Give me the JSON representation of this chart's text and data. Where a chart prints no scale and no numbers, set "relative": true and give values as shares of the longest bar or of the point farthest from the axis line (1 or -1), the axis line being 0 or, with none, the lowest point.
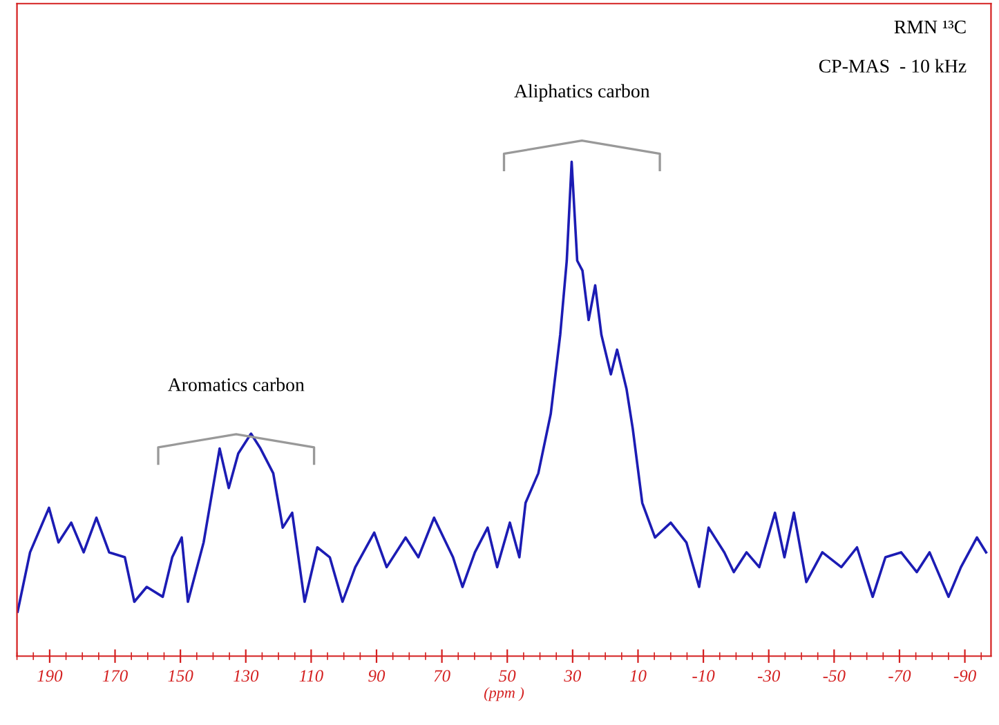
{
  "chart_data": {
    "type": "line",
    "relative": true,
    "xlabel": "(ppm )",
    "xlim": [
      200,
      -98
    ],
    "xticks": [
      190,
      170,
      150,
      130,
      110,
      90,
      70,
      50,
      30,
      10,
      -10,
      -30,
      -50,
      -70,
      -90
    ],
    "grid": false,
    "marker": "none",
    "line_style": "solid",
    "series": [
      {
        "color": "#1c1cb4",
        "x": [
          199.8,
          196.0,
          190.2,
          187.3,
          183.4,
          179.6,
          175.7,
          171.8,
          167.0,
          164.1,
          160.3,
          155.4,
          152.5,
          149.6,
          147.7,
          142.9,
          138.0,
          135.2,
          132.3,
          128.4,
          125.5,
          121.6,
          118.7,
          115.8,
          112.0,
          108.1,
          104.3,
          100.4,
          96.5,
          90.7,
          86.9,
          81.1,
          77.2,
          72.4,
          69.5,
          66.6,
          63.7,
          59.9,
          56.0,
          53.1,
          49.2,
          46.3,
          44.4,
          40.5,
          36.7,
          33.8,
          31.8,
          30.3,
          28.6,
          27.0,
          25.1,
          23.1,
          21.2,
          18.3,
          16.4,
          13.5,
          11.6,
          8.7,
          4.8,
          0.0,
          -4.8,
          -8.7,
          -11.6,
          -16.4,
          -19.3,
          -23.2,
          -27.1,
          -31.9,
          -34.8,
          -37.7,
          -41.5,
          -46.4,
          -52.2,
          -57.0,
          -61.8,
          -65.7,
          -70.5,
          -75.3,
          -79.2,
          -85.0,
          -88.8,
          -93.7,
          -96.5
        ],
        "values": [
          0.09,
          0.21,
          0.3,
          0.23,
          0.27,
          0.21,
          0.28,
          0.21,
          0.2,
          0.11,
          0.14,
          0.12,
          0.2,
          0.24,
          0.11,
          0.23,
          0.42,
          0.34,
          0.41,
          0.45,
          0.42,
          0.37,
          0.26,
          0.29,
          0.11,
          0.22,
          0.2,
          0.11,
          0.18,
          0.25,
          0.18,
          0.24,
          0.2,
          0.28,
          0.24,
          0.2,
          0.14,
          0.21,
          0.26,
          0.18,
          0.27,
          0.2,
          0.31,
          0.37,
          0.49,
          0.65,
          0.8,
          1.0,
          0.8,
          0.78,
          0.68,
          0.75,
          0.65,
          0.57,
          0.62,
          0.54,
          0.46,
          0.31,
          0.24,
          0.27,
          0.23,
          0.14,
          0.26,
          0.21,
          0.17,
          0.21,
          0.18,
          0.29,
          0.2,
          0.29,
          0.15,
          0.21,
          0.18,
          0.22,
          0.12,
          0.2,
          0.21,
          0.17,
          0.21,
          0.12,
          0.18,
          0.24,
          0.21
        ]
      }
    ],
    "annotations": [
      "RMN ¹³C",
      "CP-MAS  - 10 kHz",
      "Aromatics carbon",
      "Aliphatics carbon"
    ]
  }
}
